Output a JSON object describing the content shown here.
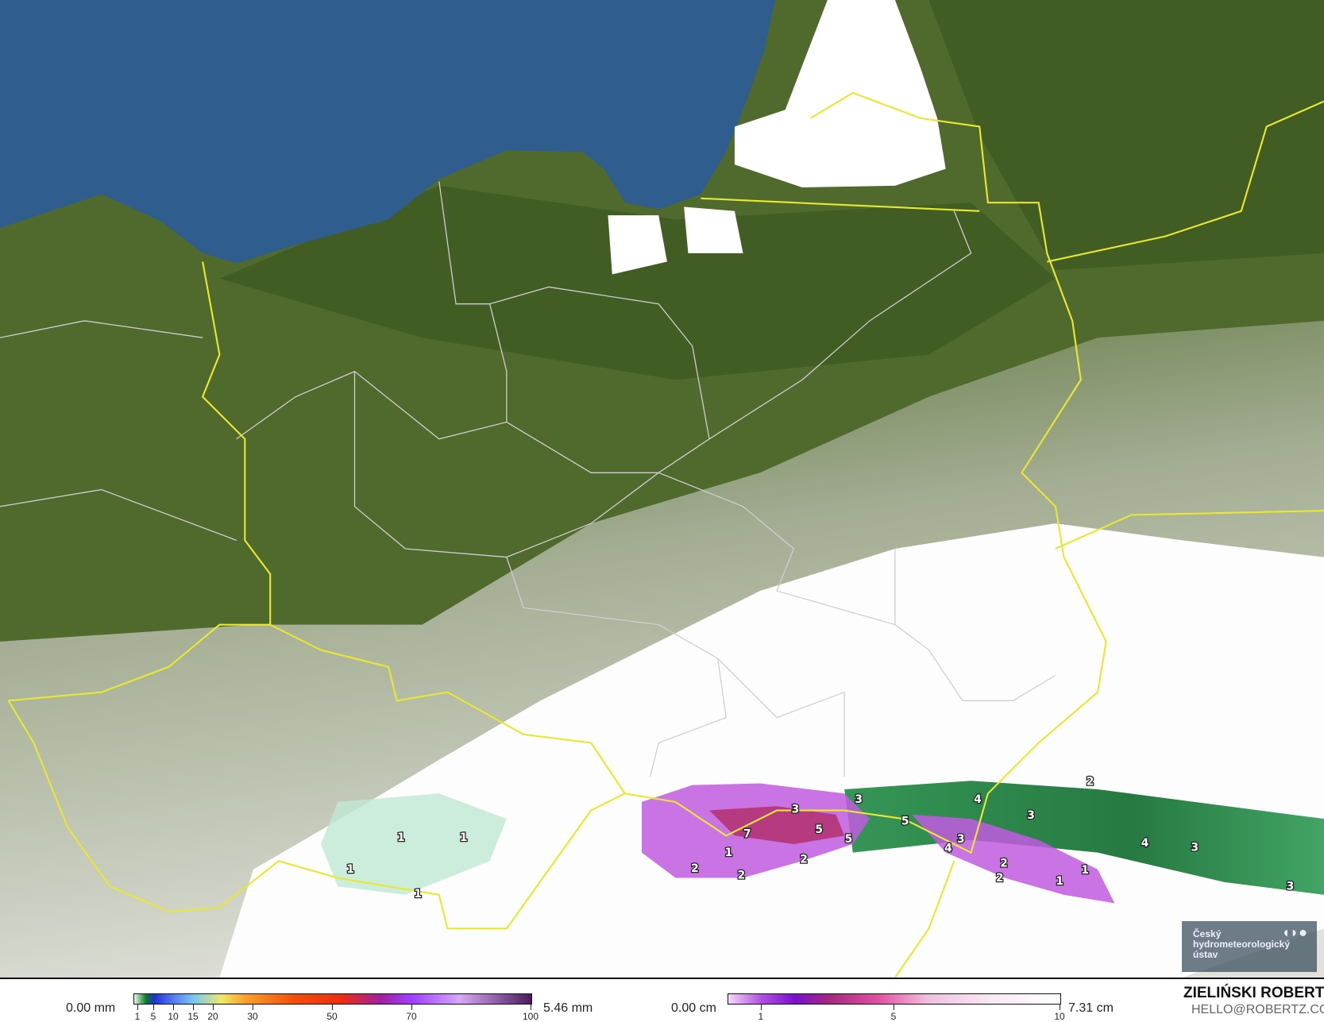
{
  "map": {
    "colors": {
      "land": "#4f6a2c",
      "sea": "#2f5d8e",
      "snow": "#ffffff",
      "border_country": "#e8e830",
      "border_region": "#cfcfcf"
    },
    "labels": [
      "2",
      "3",
      "4",
      "3",
      "3",
      "5",
      "7",
      "5",
      "5",
      "3",
      "4",
      "3",
      "4",
      "1",
      "2",
      "2",
      "2",
      "1",
      "2",
      "2",
      "1",
      "3",
      "1",
      "1",
      "1",
      "1"
    ]
  },
  "logo": {
    "line1": "Český",
    "line2": "hydrometeorologický",
    "line3": "ústav",
    "mark": "◖◗●"
  },
  "legend_precip": {
    "min_label": "0.00 mm",
    "max_label": "5.46 mm",
    "ticks": [
      "1",
      "5",
      "10",
      "15",
      "20",
      "30",
      "50",
      "70",
      "100"
    ],
    "tick_values": [
      1,
      5,
      10,
      15,
      20,
      30,
      50,
      70,
      100
    ]
  },
  "legend_snow": {
    "min_label": "0.00 cm",
    "max_label": "7.31 cm",
    "ticks": [
      "1",
      "5",
      "10"
    ],
    "tick_values": [
      1,
      5,
      10
    ]
  },
  "author": {
    "name": "ZIELIŃSKI ROBERT",
    "email": "HELLO@ROBERTZ.CO"
  }
}
